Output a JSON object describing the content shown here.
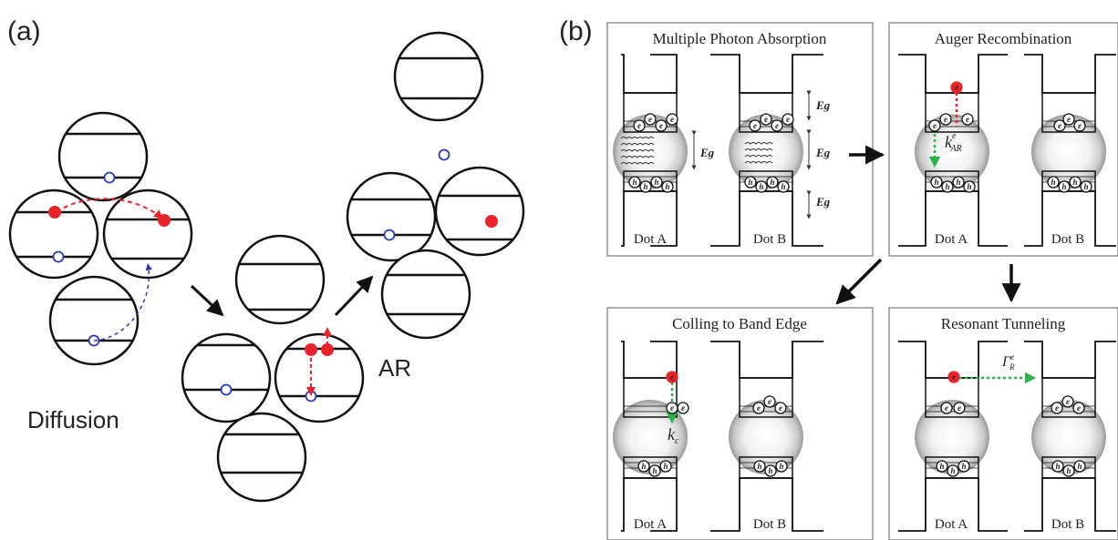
{
  "figure": {
    "panel_a": {
      "label": "(a)",
      "diffusion_label": "Diffusion",
      "ar_label": "AR"
    },
    "panel_b": {
      "label": "(b)",
      "boxes": [
        {
          "title": "Multiple Photon Absorption",
          "dot_a": "Dot A",
          "dot_b": "Dot B"
        },
        {
          "title": "Auger Recombination",
          "dot_a": "Dot A",
          "dot_b": "Dot B"
        },
        {
          "title": "Colling to Band Edge",
          "dot_a": "Dot A",
          "dot_b": "Dot B"
        },
        {
          "title": "Resonant Tunneling",
          "dot_a": "Dot A",
          "dot_b": "Dot B"
        }
      ],
      "eg_label": "Eg",
      "rate_auger": {
        "base": "k",
        "sup": "e",
        "sub": "AR"
      },
      "rate_cooling": {
        "base": "k",
        "sub": "c"
      },
      "rate_tunneling": {
        "base": "Γ",
        "sup": "e",
        "sub": "R"
      },
      "electron_glyph": "e",
      "hole_glyph": "h"
    },
    "colors": {
      "electron": "#e8242a",
      "hole_open": "#2a3bb0",
      "diffusion_arrow_red": "#e8242a",
      "diffusion_arrow_blue": "#2a3bb0",
      "cooling_arrow": "#2bb24a"
    }
  }
}
